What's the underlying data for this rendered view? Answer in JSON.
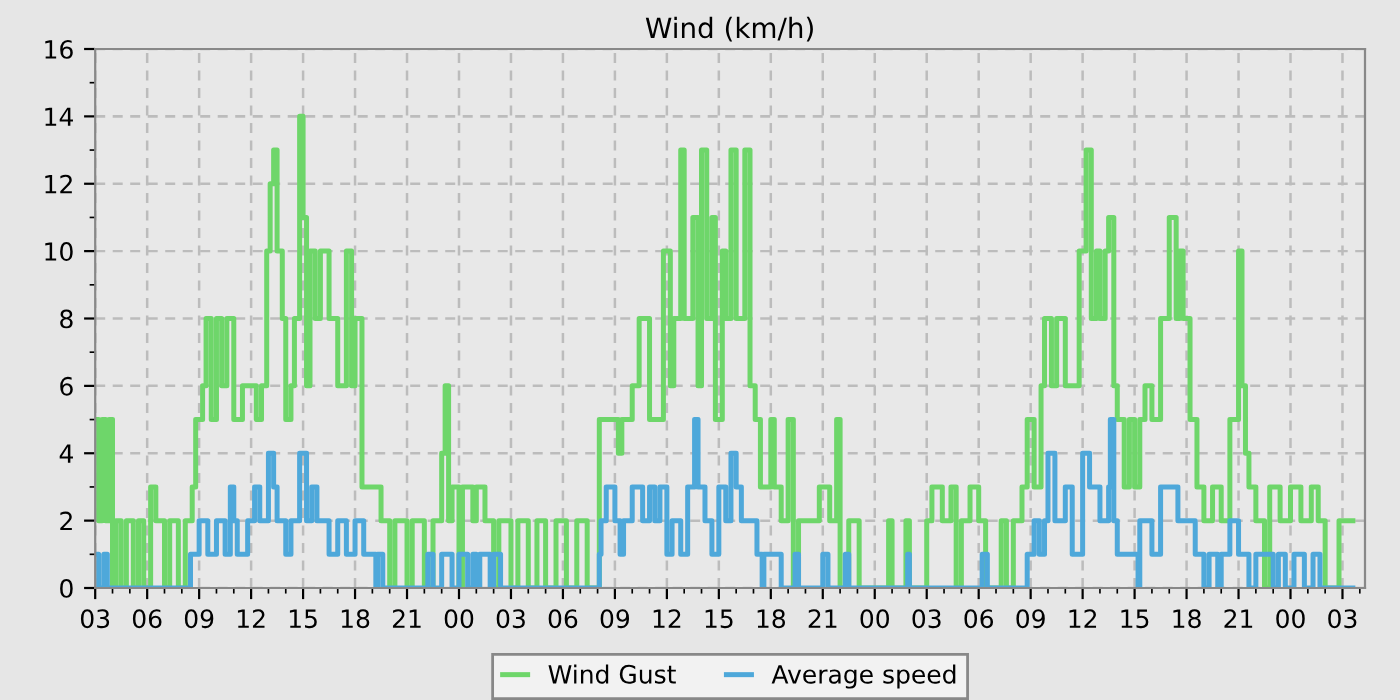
{
  "chart_data": {
    "type": "step",
    "title": "Wind (km/h)",
    "legend": "bottom",
    "grid": true,
    "line_style": "solid",
    "marker": "none",
    "xlim": [
      3,
      76.3
    ],
    "ylim": [
      0,
      16
    ],
    "yticks": [
      0,
      2,
      4,
      6,
      8,
      10,
      12,
      14,
      16
    ],
    "xticks": [
      {
        "value": 3,
        "label": "03"
      },
      {
        "value": 6,
        "label": "06"
      },
      {
        "value": 9,
        "label": "09"
      },
      {
        "value": 12,
        "label": "12"
      },
      {
        "value": 15,
        "label": "15"
      },
      {
        "value": 18,
        "label": "18"
      },
      {
        "value": 21,
        "label": "21"
      },
      {
        "value": 24,
        "label": "00"
      },
      {
        "value": 27,
        "label": "03"
      },
      {
        "value": 30,
        "label": "06"
      },
      {
        "value": 33,
        "label": "09"
      },
      {
        "value": 36,
        "label": "12"
      },
      {
        "value": 39,
        "label": "15"
      },
      {
        "value": 42,
        "label": "18"
      },
      {
        "value": 45,
        "label": "21"
      },
      {
        "value": 48,
        "label": "00"
      },
      {
        "value": 51,
        "label": "03"
      },
      {
        "value": 54,
        "label": "06"
      },
      {
        "value": 57,
        "label": "09"
      },
      {
        "value": 60,
        "label": "12"
      },
      {
        "value": 63,
        "label": "15"
      },
      {
        "value": 66,
        "label": "18"
      },
      {
        "value": 69,
        "label": "21"
      },
      {
        "value": 72,
        "label": "00"
      },
      {
        "value": 75,
        "label": "03"
      }
    ],
    "series": [
      {
        "name": "Wind Gust",
        "color": "#6ed66a",
        "x": [
          3.0,
          3.2,
          3.4,
          3.6,
          3.8,
          4.0,
          4.2,
          4.5,
          4.8,
          5.2,
          5.5,
          5.8,
          6.2,
          6.5,
          7.0,
          7.3,
          7.8,
          8.2,
          8.6,
          8.8,
          9.2,
          9.4,
          9.7,
          10.0,
          10.3,
          10.6,
          11.0,
          11.5,
          12.3,
          12.6,
          12.9,
          13.1,
          13.3,
          13.5,
          13.8,
          14.0,
          14.3,
          14.5,
          14.8,
          15.0,
          15.2,
          15.4,
          15.7,
          16.0,
          16.5,
          17.0,
          17.5,
          17.8,
          18.0,
          18.4,
          19.0,
          19.5,
          20.0,
          20.3,
          21.0,
          21.3,
          22.0,
          22.5,
          23.0,
          23.2,
          23.4,
          23.6,
          24.0,
          24.2,
          24.8,
          25.0,
          25.5,
          26.0,
          26.3,
          27.0,
          27.4,
          28.0,
          28.5,
          29.0,
          29.6,
          30.2,
          30.8,
          31.4,
          32.1,
          33.2,
          33.4,
          34.0,
          34.4,
          35.0,
          35.8,
          36.2,
          36.4,
          36.8,
          37.0,
          37.5,
          37.8,
          38.0,
          38.3,
          38.6,
          38.8,
          39.2,
          39.4,
          39.7,
          40.0,
          40.5,
          40.8,
          41.1,
          41.4,
          42.0,
          42.2,
          42.6,
          43.0,
          43.3,
          43.6,
          44.8,
          45.4,
          45.8,
          46.0,
          46.5,
          47.1,
          48.8,
          49.0,
          49.8,
          50.0,
          51.0,
          51.3,
          51.9,
          52.4,
          52.7,
          53.0,
          53.5,
          54.0,
          54.4,
          55.3,
          55.6,
          56.0,
          56.5,
          56.8,
          57.2,
          57.6,
          57.8,
          58.2,
          58.5,
          59.0,
          59.8,
          60.2,
          60.5,
          60.8,
          61.0,
          61.3,
          61.5,
          61.8,
          62.0,
          62.4,
          62.7,
          63.0,
          63.3,
          63.6,
          64.0,
          64.5,
          65.0,
          65.4,
          65.6,
          65.8,
          66.2,
          66.6,
          67.0,
          67.5,
          68.0,
          68.5,
          69.0,
          69.2,
          69.4,
          69.6,
          70.0,
          70.5,
          70.8,
          71.4,
          72.0,
          72.6,
          73.2,
          73.6,
          74.0,
          74.8,
          75.6
        ],
        "values": [
          5,
          2,
          5,
          2,
          5,
          0,
          2,
          0,
          2,
          0,
          2,
          0,
          3,
          2,
          0,
          2,
          0,
          2,
          3,
          5,
          6,
          8,
          5,
          8,
          6,
          8,
          5,
          6,
          5,
          6,
          10,
          12,
          13,
          10,
          8,
          5,
          6,
          8,
          14,
          11,
          6,
          10,
          8,
          10,
          8,
          6,
          10,
          6,
          8,
          3,
          3,
          2,
          0,
          2,
          0,
          2,
          0,
          2,
          4,
          6,
          2,
          3,
          0,
          3,
          2,
          3,
          2,
          0,
          2,
          0,
          2,
          0,
          2,
          0,
          2,
          0,
          2,
          0,
          5,
          4,
          5,
          6,
          8,
          5,
          10,
          6,
          8,
          13,
          8,
          11,
          6,
          13,
          8,
          11,
          5,
          10,
          8,
          13,
          8,
          13,
          6,
          5,
          3,
          5,
          3,
          2,
          5,
          0,
          2,
          3,
          2,
          5,
          0,
          2,
          0,
          2,
          0,
          2,
          0,
          2,
          3,
          2,
          3,
          0,
          2,
          3,
          2,
          0,
          2,
          0,
          2,
          3,
          5,
          3,
          6,
          8,
          6,
          8,
          6,
          10,
          13,
          8,
          10,
          8,
          10,
          11,
          6,
          5,
          3,
          5,
          3,
          5,
          6,
          5,
          8,
          11,
          8,
          10,
          8,
          5,
          3,
          2,
          3,
          2,
          5,
          10,
          6,
          4,
          3,
          2,
          0,
          3,
          2,
          3,
          2,
          3,
          2,
          0,
          2,
          2
        ]
      },
      {
        "name": "Average speed",
        "color": "#4ea8da",
        "x": [
          3.0,
          3.2,
          3.5,
          3.7,
          8.5,
          9.0,
          9.5,
          10.0,
          10.5,
          10.8,
          11.0,
          11.2,
          11.8,
          12.2,
          12.5,
          13.0,
          13.3,
          13.5,
          14.0,
          14.3,
          14.8,
          15.2,
          15.5,
          15.8,
          16.5,
          17.0,
          17.5,
          18.0,
          18.5,
          19.2,
          19.3,
          19.6,
          22.0,
          22.2,
          22.5,
          23.0,
          23.6,
          24.0,
          24.5,
          24.8,
          25.0,
          25.2,
          25.8,
          26.0,
          26.4,
          32.1,
          32.2,
          32.5,
          33.0,
          33.3,
          33.5,
          34.0,
          34.6,
          35.0,
          35.3,
          35.6,
          36.0,
          36.3,
          36.8,
          37.2,
          37.6,
          37.8,
          38.2,
          38.6,
          39.0,
          39.4,
          39.7,
          40.0,
          40.3,
          41.2,
          41.5,
          41.6,
          42.6,
          43.4,
          43.6,
          45.0,
          45.3,
          46.3,
          46.5,
          49.9,
          50.0,
          54.2,
          54.5,
          56.8,
          57.2,
          57.5,
          57.8,
          58.0,
          58.4,
          59.0,
          59.4,
          60.0,
          60.4,
          61.0,
          61.5,
          61.6,
          61.8,
          62.0,
          63.2,
          63.3,
          64.0,
          64.5,
          65.5,
          66.5,
          67.0,
          67.3,
          67.8,
          68.0,
          68.5,
          69.0,
          69.6,
          70.0,
          71.0,
          71.3,
          71.7,
          72.2,
          72.8,
          73.3,
          73.7,
          75.6
        ],
        "values": [
          1,
          0,
          1,
          0,
          1,
          2,
          1,
          2,
          1,
          3,
          2,
          1,
          2,
          3,
          2,
          4,
          3,
          2,
          1,
          2,
          4,
          2,
          3,
          2,
          1,
          2,
          1,
          2,
          1,
          0,
          1,
          0,
          0,
          1,
          0,
          1,
          0,
          1,
          0,
          1,
          0,
          1,
          0,
          1,
          0,
          1,
          2,
          3,
          2,
          1,
          2,
          3,
          2,
          3,
          2,
          3,
          1,
          2,
          1,
          3,
          5,
          3,
          2,
          1,
          3,
          2,
          4,
          3,
          2,
          1,
          0,
          1,
          0,
          1,
          0,
          1,
          0,
          1,
          0,
          1,
          0,
          1,
          0,
          1,
          2,
          1,
          2,
          4,
          2,
          3,
          1,
          4,
          3,
          2,
          3,
          5,
          2,
          1,
          0,
          2,
          1,
          3,
          2,
          1,
          0,
          1,
          0,
          1,
          2,
          1,
          0,
          1,
          0,
          1,
          0,
          1,
          0,
          1,
          0,
          0
        ]
      }
    ]
  }
}
